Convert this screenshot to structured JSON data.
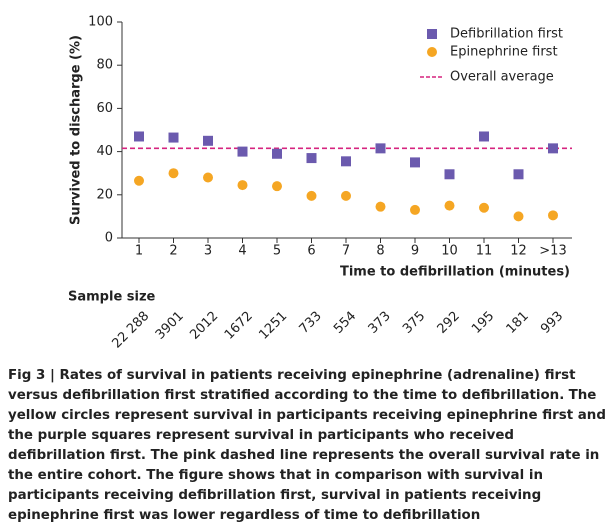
{
  "chart_data": {
    "type": "scatter",
    "ylabel": "Survived to discharge (%)",
    "xlabel": "Time to defibrillation (minutes)",
    "categories": [
      "1",
      "2",
      "3",
      "4",
      "5",
      "6",
      "7",
      "8",
      "9",
      "10",
      "11",
      "12",
      ">13"
    ],
    "series": [
      {
        "name": "Defibrillation first",
        "color": "#6b5aae",
        "marker": "square",
        "values": [
          47,
          46.5,
          45,
          40,
          39,
          37,
          35.5,
          41.5,
          35,
          29.5,
          47,
          29.5,
          41.5
        ]
      },
      {
        "name": "Epinephrine first",
        "color": "#f5a623",
        "marker": "circle",
        "values": [
          26.5,
          30,
          28,
          24.5,
          24,
          19.5,
          19.5,
          14.5,
          13,
          15,
          14,
          10,
          10.5
        ]
      }
    ],
    "reference_line": {
      "name": "Overall average",
      "value": 41.5,
      "color": "#d6247f"
    },
    "ylim": [
      0,
      100
    ],
    "yticks": [
      0,
      20,
      40,
      60,
      80,
      100
    ],
    "legend": "upper right",
    "sample_size": {
      "title": "Sample size",
      "labels": [
        "22 288",
        "3901",
        "2012",
        "1672",
        "1251",
        "733",
        "554",
        "373",
        "375",
        "292",
        "195",
        "181",
        "993"
      ]
    }
  },
  "caption": {
    "heading": "Fig 3 | Rates of survival in patients receiving epinephrine (adrenaline) first versus defibrillation first stratified according to the time to defibrillation.",
    "text": "The yellow circles represent survival in participants receiving epinephrine first and the purple squares represent survival in participants who received defibrillation first. The pink dashed line represents the overall survival rate in the entire cohort. The figure shows that in comparison with survival in participants receiving defibrillation first, survival in patients receiving epinephrine first was lower regardless of time to defibrillation"
  }
}
